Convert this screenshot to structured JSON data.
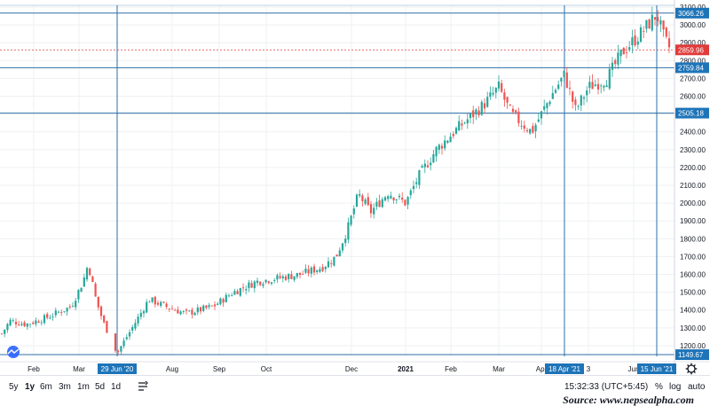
{
  "colors": {
    "up": "#26a69a",
    "down": "#ef5350",
    "crosshair": "#2962ff",
    "marker_line": "#2e6fa8",
    "label_bg": "#1e74b8",
    "last_price": "#e03b3b",
    "grid": "#eef0f3",
    "axis_text": "#131722"
  },
  "toolbar": {
    "ranges": [
      "5y",
      "1y",
      "6m",
      "3m",
      "1m",
      "5d",
      "1d"
    ],
    "active_range": "1y",
    "compare_icon": "compare-icon",
    "time": "15:32:33 (UTC+5:45)",
    "percent_label": "%",
    "log_label": "log",
    "auto_label": "auto",
    "settings_icon": "gear-icon"
  },
  "source_text": "Source: www.nepsealpha.com",
  "chart_data": {
    "type": "candlestick",
    "title": "",
    "xlabel": "",
    "ylabel": "",
    "ylim": [
      1140,
      3110
    ],
    "y_ticks": [
      1200,
      1300,
      1400,
      1500,
      1600,
      1700,
      1800,
      1900,
      2000,
      2100,
      2200,
      2300,
      2400,
      2500,
      2600,
      2700,
      2800,
      2900,
      3000,
      3100
    ],
    "x_ticks": [
      {
        "label": "Feb",
        "date": "2020-02-01"
      },
      {
        "label": "Mar",
        "date": "2020-03-01"
      },
      {
        "label": "Aug",
        "date": "2020-08-01"
      },
      {
        "label": "Sep",
        "date": "2020-09-01"
      },
      {
        "label": "Oct",
        "date": "2020-10-01"
      },
      {
        "label": "Dec",
        "date": "2020-12-01"
      },
      {
        "label": "2021",
        "date": "2021-01-01"
      },
      {
        "label": "Feb",
        "date": "2021-02-01"
      },
      {
        "label": "Mar",
        "date": "2021-03-01"
      },
      {
        "label": "Apr",
        "date": "2021-04-01"
      },
      {
        "label": "3",
        "date": "2021-05-03"
      },
      {
        "label": "Jun",
        "date": "2021-06-01"
      }
    ],
    "vertical_markers": [
      {
        "label": "29 Jun '20",
        "date": "2020-06-29"
      },
      {
        "label": "18 Apr '21",
        "date": "2021-04-18"
      },
      {
        "label": "15 Jun '21",
        "date": "2021-06-15"
      }
    ],
    "horizontal_levels": [
      {
        "label": "3066.26",
        "value": 3066.26
      },
      {
        "label": "2759.84",
        "value": 2759.84
      },
      {
        "label": "2505.18",
        "value": 2505.18
      },
      {
        "label": "1149.67",
        "value": 1149.67
      }
    ],
    "last_price": {
      "label": "2859.96",
      "value": 2859.96
    },
    "key_points": [
      {
        "date": "2020-01-01",
        "close": 1250
      },
      {
        "date": "2020-01-10",
        "close": 1340
      },
      {
        "date": "2020-01-25",
        "close": 1320
      },
      {
        "date": "2020-02-10",
        "close": 1360
      },
      {
        "date": "2020-02-25",
        "close": 1420
      },
      {
        "date": "2020-03-05",
        "close": 1560
      },
      {
        "date": "2020-03-10",
        "close": 1660
      },
      {
        "date": "2020-03-18",
        "close": 1450
      },
      {
        "date": "2020-03-25",
        "close": 1330
      },
      {
        "date": "2020-06-29",
        "close": 1160
      },
      {
        "date": "2020-07-08",
        "close": 1300
      },
      {
        "date": "2020-07-18",
        "close": 1460
      },
      {
        "date": "2020-07-28",
        "close": 1420
      },
      {
        "date": "2020-08-10",
        "close": 1380
      },
      {
        "date": "2020-08-28",
        "close": 1420
      },
      {
        "date": "2020-09-10",
        "close": 1500
      },
      {
        "date": "2020-09-25",
        "close": 1560
      },
      {
        "date": "2020-10-10",
        "close": 1580
      },
      {
        "date": "2020-10-25",
        "close": 1600
      },
      {
        "date": "2020-11-10",
        "close": 1640
      },
      {
        "date": "2020-11-20",
        "close": 1700
      },
      {
        "date": "2020-11-28",
        "close": 1850
      },
      {
        "date": "2020-12-05",
        "close": 2050
      },
      {
        "date": "2020-12-12",
        "close": 1950
      },
      {
        "date": "2020-12-22",
        "close": 2060
      },
      {
        "date": "2021-01-01",
        "close": 2000
      },
      {
        "date": "2021-01-10",
        "close": 2150
      },
      {
        "date": "2021-01-22",
        "close": 2300
      },
      {
        "date": "2021-02-05",
        "close": 2420
      },
      {
        "date": "2021-02-20",
        "close": 2550
      },
      {
        "date": "2021-03-01",
        "close": 2650
      },
      {
        "date": "2021-03-10",
        "close": 2500
      },
      {
        "date": "2021-03-25",
        "close": 2400
      },
      {
        "date": "2021-04-08",
        "close": 2600
      },
      {
        "date": "2021-04-18",
        "close": 2720
      },
      {
        "date": "2021-04-25",
        "close": 2520
      },
      {
        "date": "2021-05-03",
        "close": 2650
      },
      {
        "date": "2021-05-15",
        "close": 2700
      },
      {
        "date": "2021-05-25",
        "close": 2850
      },
      {
        "date": "2021-06-05",
        "close": 2950
      },
      {
        "date": "2021-06-15",
        "close": 3060
      },
      {
        "date": "2021-06-22",
        "close": 2920
      },
      {
        "date": "2021-06-28",
        "close": 2860
      }
    ]
  }
}
